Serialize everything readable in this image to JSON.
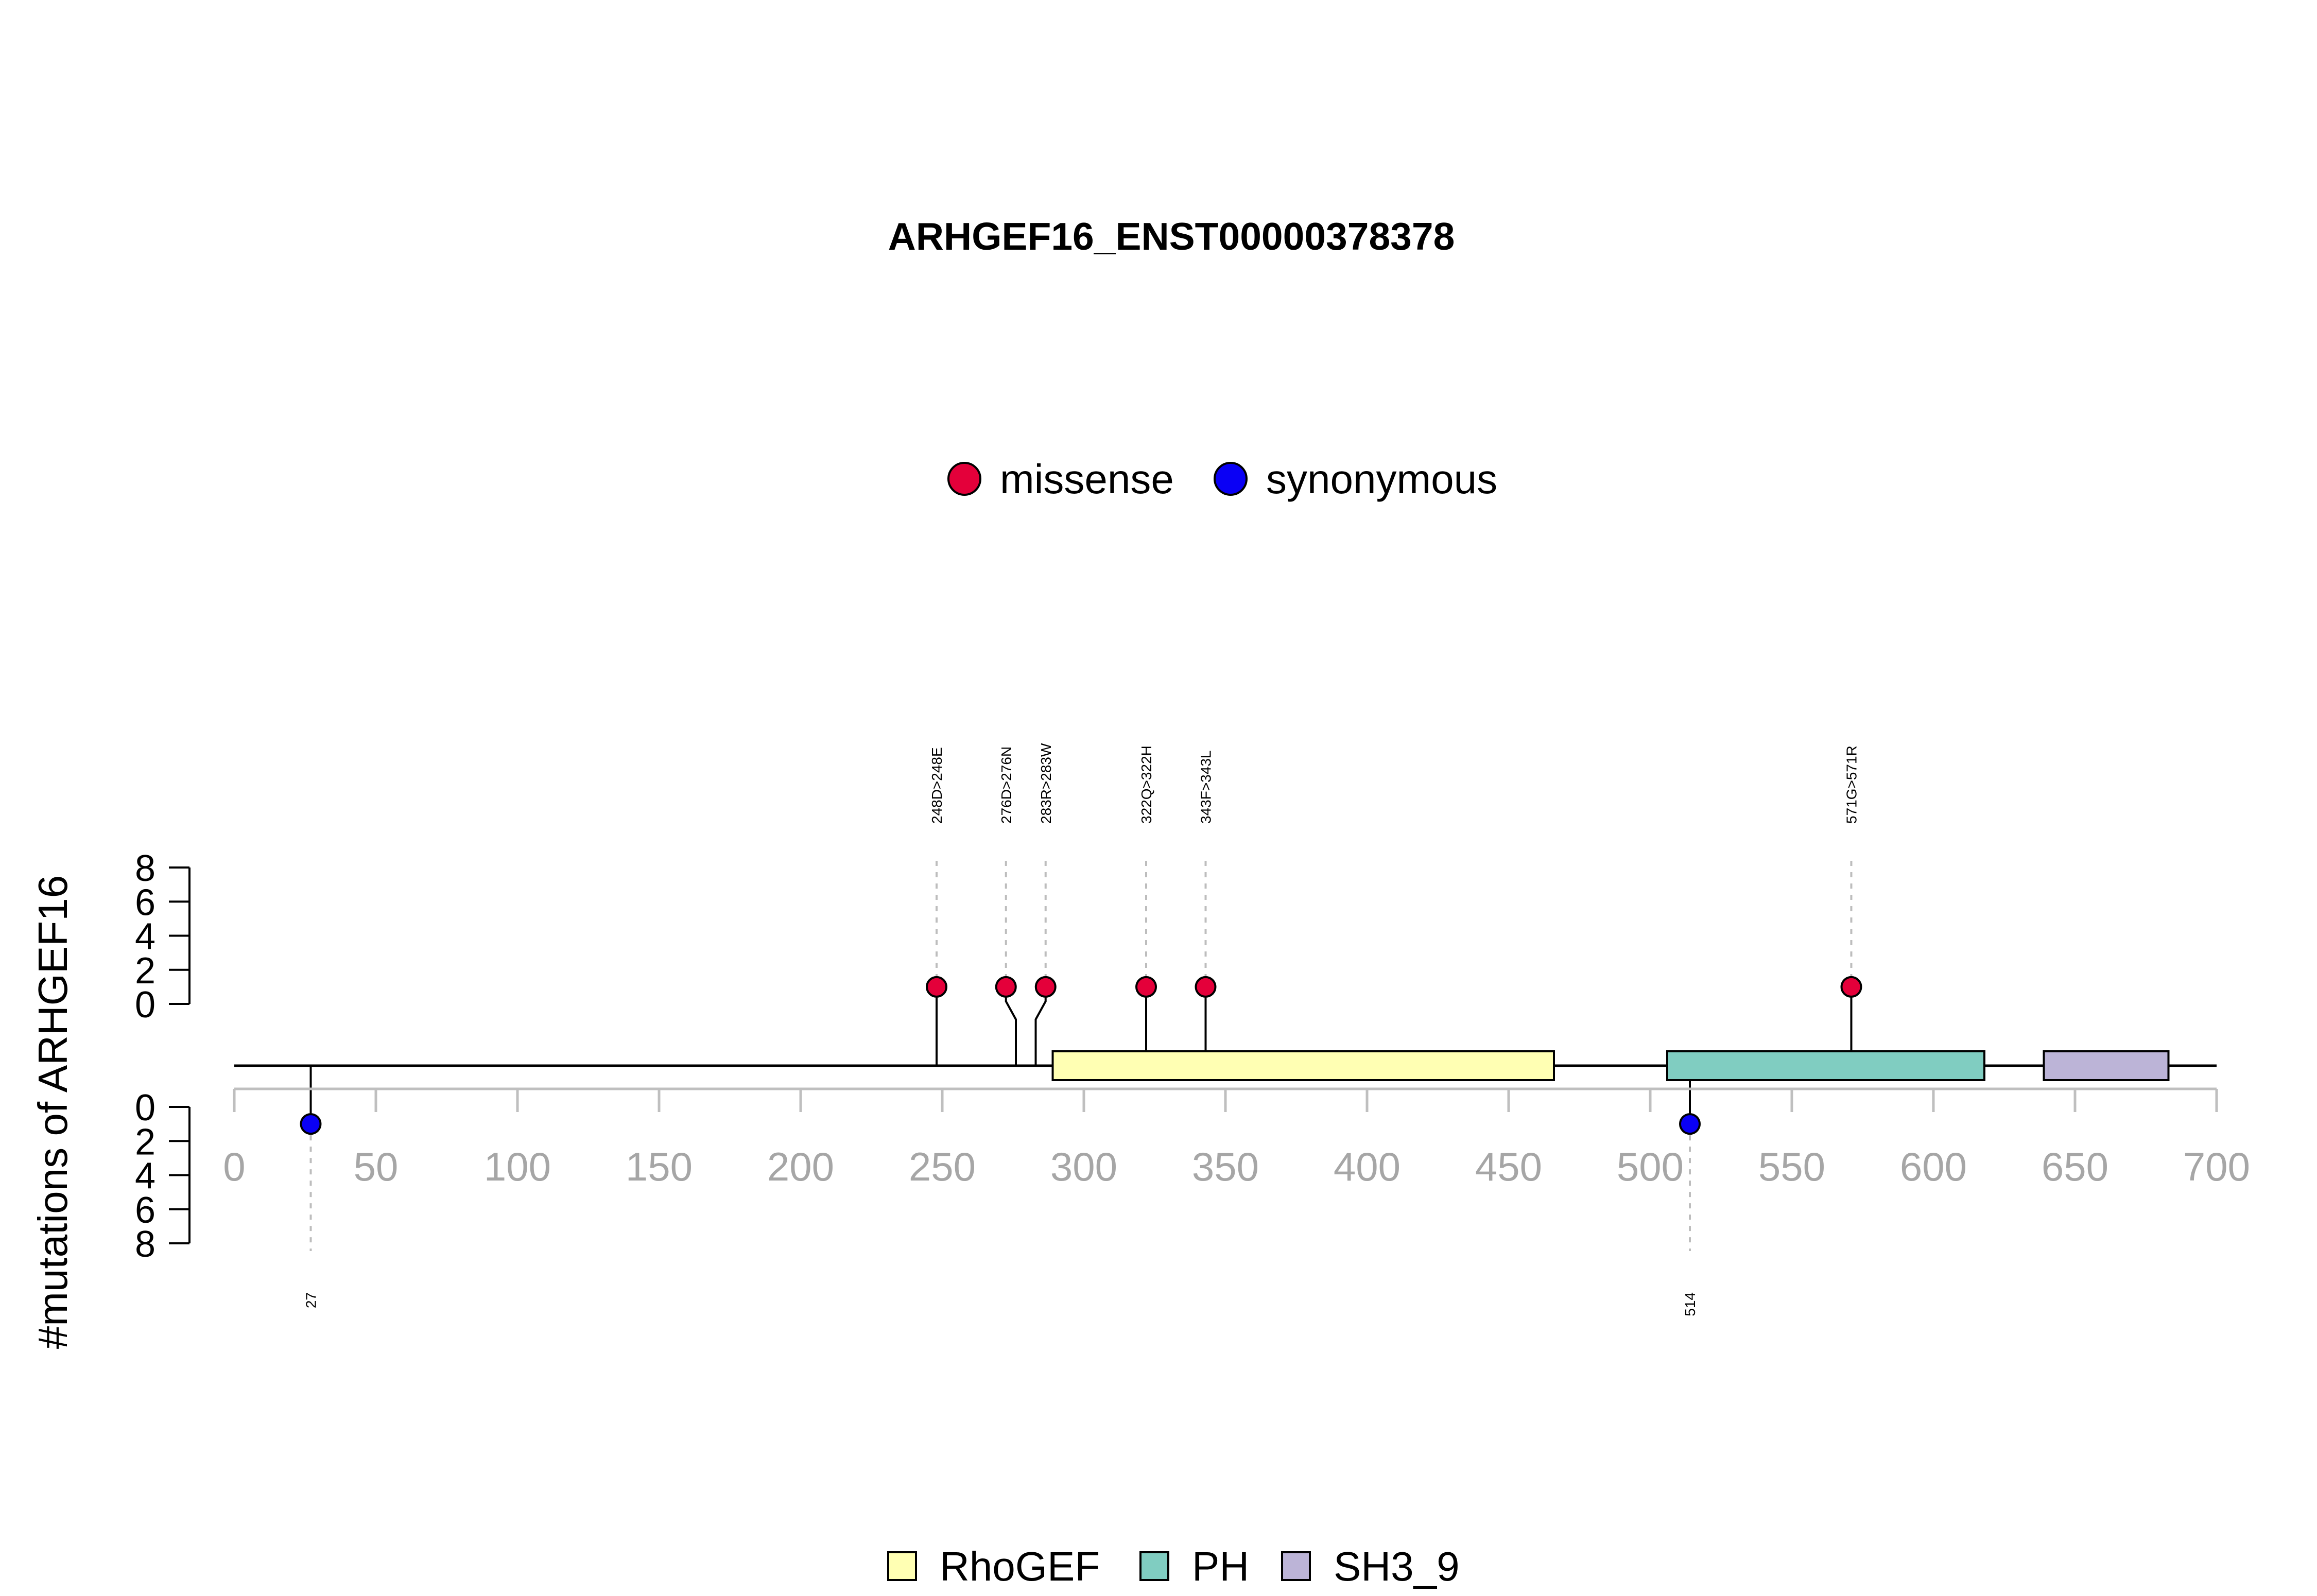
{
  "chart_data": {
    "type": "lollipop",
    "title": "ARHGEF16_ENST00000378378",
    "ylabel": "#mutations of ARHGEF16",
    "xlim": [
      0,
      700
    ],
    "x_ticks": [
      0,
      50,
      100,
      150,
      200,
      250,
      300,
      350,
      400,
      450,
      500,
      550,
      600,
      650,
      700
    ],
    "y_ticks_upper": [
      0,
      2,
      4,
      6,
      8
    ],
    "y_ticks_lower": [
      0,
      2,
      4,
      6,
      8
    ],
    "ylim": [
      0,
      8
    ],
    "protein_length": 700,
    "mutation_legend": [
      {
        "name": "missense",
        "color": "#e4003a"
      },
      {
        "name": "synonymous",
        "color": "#0a00f5"
      }
    ],
    "domain_legend": [
      {
        "name": "RhoGEF",
        "color": "#ffffb3"
      },
      {
        "name": "PH",
        "color": "#80cdc1"
      },
      {
        "name": "SH3_9",
        "color": "#bcb4d7"
      }
    ],
    "domains": [
      {
        "name": "RhoGEF",
        "start": 289,
        "end": 466,
        "color": "#ffffb3"
      },
      {
        "name": "PH",
        "start": 506,
        "end": 618,
        "color": "#80cdc1"
      },
      {
        "name": "SH3_9",
        "start": 639,
        "end": 683,
        "color": "#bcb4d7"
      }
    ],
    "mutations_upper": [
      {
        "position": 248,
        "label_position": 248,
        "count": 1,
        "type": "missense",
        "label": "248D>248E"
      },
      {
        "position": 276,
        "label_position": 272.5,
        "count": 1,
        "type": "missense",
        "label": "276D>276N"
      },
      {
        "position": 283,
        "label_position": 286.5,
        "count": 1,
        "type": "missense",
        "label": "283R>283W"
      },
      {
        "position": 322,
        "label_position": 322,
        "count": 1,
        "type": "missense",
        "label": "322Q>322H"
      },
      {
        "position": 343,
        "label_position": 343,
        "count": 1,
        "type": "missense",
        "label": "343F>343L"
      },
      {
        "position": 571,
        "label_position": 571,
        "count": 1,
        "type": "missense",
        "label": "571G>571R"
      }
    ],
    "mutations_lower": [
      {
        "position": 27,
        "count": 1,
        "type": "synonymous",
        "label": "27"
      },
      {
        "position": 514,
        "count": 1,
        "type": "synonymous",
        "label": "514"
      }
    ]
  }
}
